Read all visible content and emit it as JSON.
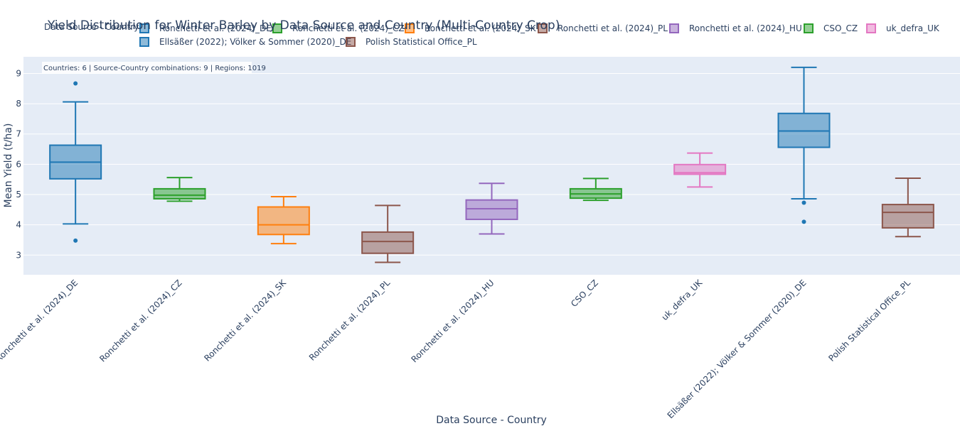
{
  "chart_data": {
    "type": "box",
    "title": "Yield Distribution for Winter Barley by Data Source and Country (Multi-Country Crop)",
    "xlabel": "Data Source - Country",
    "ylabel": "Mean Yield (t/ha)",
    "ylim": [
      2.35,
      9.55
    ],
    "yticks": [
      3,
      4,
      5,
      6,
      7,
      8,
      9
    ],
    "grid": true,
    "legend_title": "Data Source - Country",
    "legend_position": "top",
    "annotation": "Countries: 6 | Source-Country combinations: 9 | Regions: 1019",
    "categories": [
      "Ronchetti et al. (2024)_DE",
      "Ronchetti et al. (2024)_CZ",
      "Ronchetti et al. (2024)_SK",
      "Ronchetti et al. (2024)_PL",
      "Ronchetti et al. (2024)_HU",
      "CSO_CZ",
      "uk_defra_UK",
      "Ellsäßer (2022); Völker & Sommer (2020)_DE",
      "Polish Statistical Office_PL"
    ],
    "series": [
      {
        "name": "Ronchetti et al. (2024)_DE",
        "color": "#1f77b4",
        "min": 4.03,
        "q1": 5.52,
        "median": 6.07,
        "q3": 6.63,
        "max": 8.06,
        "outliers": [
          8.67,
          3.48
        ]
      },
      {
        "name": "Ronchetti et al. (2024)_CZ",
        "color": "#2ca02c",
        "min": 4.78,
        "q1": 4.86,
        "median": 4.98,
        "q3": 5.19,
        "max": 5.56,
        "outliers": []
      },
      {
        "name": "Ronchetti et al. (2024)_SK",
        "color": "#ff7f0e",
        "min": 3.38,
        "q1": 3.68,
        "median": 4.0,
        "q3": 4.59,
        "max": 4.93,
        "outliers": []
      },
      {
        "name": "Ronchetti et al. (2024)_PL",
        "color": "#8c564b",
        "min": 2.76,
        "q1": 3.06,
        "median": 3.45,
        "q3": 3.76,
        "max": 4.64,
        "outliers": []
      },
      {
        "name": "Ronchetti et al. (2024)_HU",
        "color": "#9467bd",
        "min": 3.7,
        "q1": 4.18,
        "median": 4.53,
        "q3": 4.82,
        "max": 5.37,
        "outliers": []
      },
      {
        "name": "CSO_CZ",
        "color": "#2ca02c",
        "min": 4.81,
        "q1": 4.88,
        "median": 5.02,
        "q3": 5.19,
        "max": 5.53,
        "outliers": []
      },
      {
        "name": "uk_defra_UK",
        "color": "#e377c2",
        "min": 5.25,
        "q1": 5.67,
        "median": 5.72,
        "q3": 5.99,
        "max": 6.37,
        "outliers": []
      },
      {
        "name": "Ellsäßer (2022); Völker & Sommer (2020)_DE",
        "color": "#1f77b4",
        "min": 4.86,
        "q1": 6.56,
        "median": 7.1,
        "q3": 7.68,
        "max": 9.2,
        "outliers": [
          4.73,
          4.1
        ]
      },
      {
        "name": "Polish Statistical Office_PL",
        "color": "#8c564b",
        "min": 3.61,
        "q1": 3.9,
        "median": 4.41,
        "q3": 4.67,
        "max": 5.54,
        "outliers": []
      }
    ]
  }
}
